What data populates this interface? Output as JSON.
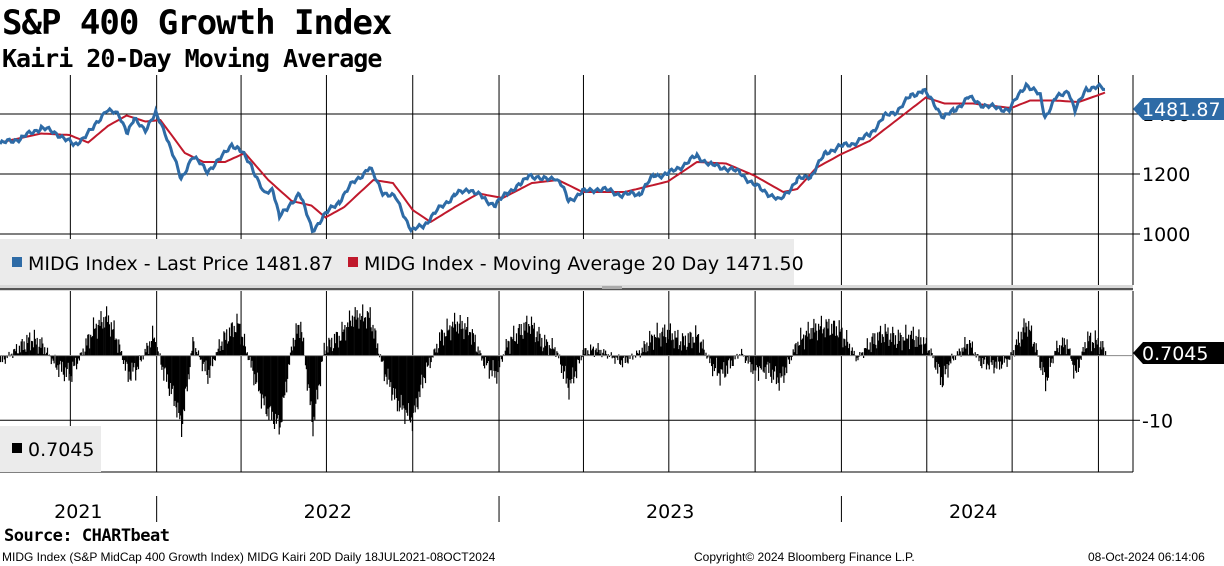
{
  "title": "S&P 400 Growth Index",
  "subtitle": "Kairi 20-Day Moving Average",
  "source": "Source: CHARTbeat",
  "footer": {
    "left": "MIDG Index (S&P MidCap 400 Growth Index) MIDG Kairi 20D  Daily 18JUL2021-08OCT2024",
    "center": "Copyright© 2024 Bloomberg Finance L.P.",
    "right": "08-Oct-2024 06:14:06"
  },
  "colors": {
    "price": "#2e6ba6",
    "moving_average": "#c0192c",
    "kairi": "#000000",
    "accent_label": "#2e6ba6"
  },
  "chart_data": [
    {
      "type": "line",
      "panel": "upper",
      "x_range": [
        "2021-07-18",
        "2024-10-08"
      ],
      "ylim": [
        830,
        1530
      ],
      "y_ticks": [
        1000,
        1200,
        1400
      ],
      "x_tick_labels": [
        "2021",
        "2022",
        "2023",
        "2024"
      ],
      "grid": true,
      "legend": "bottom-left",
      "last_value_label": "1481.87",
      "series": [
        {
          "name": "MIDG Index - Last Price",
          "legend_label": "MIDG Index - Last Price 1481.87",
          "color": "#2e6ba6",
          "points": [
            [
              "2021-07-18",
              1300
            ],
            [
              "2021-08-10",
              1320
            ],
            [
              "2021-08-31",
              1355
            ],
            [
              "2021-09-20",
              1330
            ],
            [
              "2021-10-05",
              1295
            ],
            [
              "2021-10-25",
              1350
            ],
            [
              "2021-11-08",
              1415
            ],
            [
              "2021-11-22",
              1395
            ],
            [
              "2021-12-01",
              1340
            ],
            [
              "2021-12-08",
              1380
            ],
            [
              "2021-12-20",
              1350
            ],
            [
              "2021-12-31",
              1400
            ],
            [
              "2022-01-10",
              1340
            ],
            [
              "2022-01-20",
              1250
            ],
            [
              "2022-01-27",
              1180
            ],
            [
              "2022-02-08",
              1260
            ],
            [
              "2022-02-24",
              1210
            ],
            [
              "2022-03-10",
              1250
            ],
            [
              "2022-03-22",
              1300
            ],
            [
              "2022-03-29",
              1285
            ],
            [
              "2022-04-12",
              1230
            ],
            [
              "2022-04-26",
              1130
            ],
            [
              "2022-05-05",
              1150
            ],
            [
              "2022-05-12",
              1060
            ],
            [
              "2022-05-20",
              1080
            ],
            [
              "2022-06-02",
              1140
            ],
            [
              "2022-06-16",
              1010
            ],
            [
              "2022-06-28",
              1060
            ],
            [
              "2022-07-15",
              1110
            ],
            [
              "2022-07-29",
              1170
            ],
            [
              "2022-08-16",
              1220
            ],
            [
              "2022-08-30",
              1140
            ],
            [
              "2022-09-13",
              1120
            ],
            [
              "2022-09-30",
              1010
            ],
            [
              "2022-10-13",
              1030
            ],
            [
              "2022-10-31",
              1090
            ],
            [
              "2022-11-15",
              1130
            ],
            [
              "2022-11-30",
              1150
            ],
            [
              "2022-12-15",
              1120
            ],
            [
              "2022-12-28",
              1095
            ],
            [
              "2023-01-10",
              1140
            ],
            [
              "2023-01-25",
              1165
            ],
            [
              "2023-02-02",
              1200
            ],
            [
              "2023-02-16",
              1180
            ],
            [
              "2023-03-02",
              1190
            ],
            [
              "2023-03-09",
              1160
            ],
            [
              "2023-03-16",
              1110
            ],
            [
              "2023-03-31",
              1140
            ],
            [
              "2023-04-14",
              1150
            ],
            [
              "2023-04-28",
              1145
            ],
            [
              "2023-05-12",
              1130
            ],
            [
              "2023-05-31",
              1135
            ],
            [
              "2023-06-15",
              1195
            ],
            [
              "2023-06-30",
              1200
            ],
            [
              "2023-07-14",
              1225
            ],
            [
              "2023-07-31",
              1260
            ],
            [
              "2023-08-15",
              1230
            ],
            [
              "2023-08-31",
              1220
            ],
            [
              "2023-09-15",
              1205
            ],
            [
              "2023-09-29",
              1165
            ],
            [
              "2023-10-13",
              1140
            ],
            [
              "2023-10-27",
              1110
            ],
            [
              "2023-11-15",
              1180
            ],
            [
              "2023-11-30",
              1195
            ],
            [
              "2023-12-15",
              1270
            ],
            [
              "2023-12-29",
              1290
            ],
            [
              "2024-01-12",
              1300
            ],
            [
              "2024-01-31",
              1330
            ],
            [
              "2024-02-15",
              1390
            ],
            [
              "2024-02-29",
              1410
            ],
            [
              "2024-03-15",
              1460
            ],
            [
              "2024-03-28",
              1480
            ],
            [
              "2024-04-05",
              1450
            ],
            [
              "2024-04-19",
              1390
            ],
            [
              "2024-04-30",
              1410
            ],
            [
              "2024-05-15",
              1455
            ],
            [
              "2024-05-31",
              1430
            ],
            [
              "2024-06-14",
              1420
            ],
            [
              "2024-06-28",
              1415
            ],
            [
              "2024-07-16",
              1500
            ],
            [
              "2024-07-31",
              1460
            ],
            [
              "2024-08-05",
              1390
            ],
            [
              "2024-08-16",
              1450
            ],
            [
              "2024-08-30",
              1480
            ],
            [
              "2024-09-06",
              1410
            ],
            [
              "2024-09-18",
              1485
            ],
            [
              "2024-09-30",
              1490
            ],
            [
              "2024-10-08",
              1481.87
            ]
          ]
        },
        {
          "name": "MIDG Index - Moving Average 20 Day",
          "legend_label": "MIDG Index - Moving Average 20 Day 1471.50",
          "color": "#c0192c",
          "points": [
            [
              "2021-07-18",
              1305
            ],
            [
              "2021-08-31",
              1335
            ],
            [
              "2021-09-30",
              1330
            ],
            [
              "2021-10-20",
              1305
            ],
            [
              "2021-11-10",
              1360
            ],
            [
              "2021-11-30",
              1395
            ],
            [
              "2021-12-20",
              1375
            ],
            [
              "2022-01-05",
              1380
            ],
            [
              "2022-01-31",
              1270
            ],
            [
              "2022-02-20",
              1240
            ],
            [
              "2022-03-15",
              1240
            ],
            [
              "2022-04-05",
              1270
            ],
            [
              "2022-04-30",
              1180
            ],
            [
              "2022-05-25",
              1110
            ],
            [
              "2022-06-15",
              1095
            ],
            [
              "2022-06-30",
              1055
            ],
            [
              "2022-07-20",
              1090
            ],
            [
              "2022-08-20",
              1180
            ],
            [
              "2022-09-10",
              1170
            ],
            [
              "2022-10-01",
              1080
            ],
            [
              "2022-10-20",
              1040
            ],
            [
              "2022-11-15",
              1090
            ],
            [
              "2022-12-10",
              1135
            ],
            [
              "2023-01-05",
              1120
            ],
            [
              "2023-02-05",
              1170
            ],
            [
              "2023-03-05",
              1180
            ],
            [
              "2023-03-31",
              1140
            ],
            [
              "2023-05-15",
              1140
            ],
            [
              "2023-06-30",
              1175
            ],
            [
              "2023-07-31",
              1240
            ],
            [
              "2023-08-31",
              1235
            ],
            [
              "2023-09-30",
              1195
            ],
            [
              "2023-10-31",
              1140
            ],
            [
              "2023-11-15",
              1150
            ],
            [
              "2023-12-05",
              1220
            ],
            [
              "2023-12-31",
              1265
            ],
            [
              "2024-01-31",
              1310
            ],
            [
              "2024-02-29",
              1380
            ],
            [
              "2024-03-31",
              1455
            ],
            [
              "2024-04-20",
              1435
            ],
            [
              "2024-05-20",
              1435
            ],
            [
              "2024-06-30",
              1420
            ],
            [
              "2024-07-20",
              1445
            ],
            [
              "2024-08-15",
              1445
            ],
            [
              "2024-09-10",
              1440
            ],
            [
              "2024-09-30",
              1462
            ],
            [
              "2024-10-08",
              1471.5
            ]
          ]
        }
      ]
    },
    {
      "type": "bar",
      "panel": "lower",
      "x_range": [
        "2021-07-18",
        "2024-10-08"
      ],
      "ylim": [
        -18,
        10
      ],
      "y_ticks": [
        -10
      ],
      "grid": true,
      "legend": "bottom-left",
      "last_value_label": "0.7045",
      "series": [
        {
          "name": "MIDG Kairi 20D",
          "legend_label": "0.7045",
          "color": "#000000",
          "points": [
            [
              "2021-07-18",
              -1
            ],
            [
              "2021-08-05",
              1
            ],
            [
              "2021-08-20",
              2.5
            ],
            [
              "2021-09-01",
              1.5
            ],
            [
              "2021-09-15",
              -1.5
            ],
            [
              "2021-09-30",
              -3
            ],
            [
              "2021-10-15",
              1
            ],
            [
              "2021-10-25",
              4
            ],
            [
              "2021-11-08",
              6
            ],
            [
              "2021-11-18",
              3
            ],
            [
              "2021-12-01",
              -3
            ],
            [
              "2021-12-10",
              -2
            ],
            [
              "2021-12-28",
              3
            ],
            [
              "2022-01-07",
              -2
            ],
            [
              "2022-01-20",
              -7
            ],
            [
              "2022-01-27",
              -11
            ],
            [
              "2022-02-08",
              2
            ],
            [
              "2022-02-24",
              -3
            ],
            [
              "2022-03-10",
              2
            ],
            [
              "2022-03-28",
              5
            ],
            [
              "2022-04-12",
              -2
            ],
            [
              "2022-04-26",
              -8
            ],
            [
              "2022-05-12",
              -11
            ],
            [
              "2022-05-25",
              2
            ],
            [
              "2022-06-03",
              5
            ],
            [
              "2022-06-16",
              -11
            ],
            [
              "2022-06-28",
              1
            ],
            [
              "2022-07-15",
              3
            ],
            [
              "2022-07-29",
              6
            ],
            [
              "2022-08-16",
              6
            ],
            [
              "2022-08-30",
              -2
            ],
            [
              "2022-09-13",
              -7
            ],
            [
              "2022-09-30",
              -10
            ],
            [
              "2022-10-13",
              -3
            ],
            [
              "2022-10-31",
              3
            ],
            [
              "2022-11-15",
              5
            ],
            [
              "2022-11-30",
              4
            ],
            [
              "2022-12-15",
              -1
            ],
            [
              "2022-12-28",
              -3
            ],
            [
              "2023-01-10",
              2
            ],
            [
              "2023-01-25",
              4
            ],
            [
              "2023-02-02",
              5
            ],
            [
              "2023-02-16",
              2
            ],
            [
              "2023-03-02",
              1
            ],
            [
              "2023-03-16",
              -5
            ],
            [
              "2023-03-31",
              0.5
            ],
            [
              "2023-04-14",
              1
            ],
            [
              "2023-05-12",
              -1
            ],
            [
              "2023-05-31",
              0.5
            ],
            [
              "2023-06-15",
              3
            ],
            [
              "2023-06-30",
              3.5
            ],
            [
              "2023-07-14",
              2
            ],
            [
              "2023-07-31",
              3
            ],
            [
              "2023-08-15",
              -1.5
            ],
            [
              "2023-08-25",
              -3
            ],
            [
              "2023-09-15",
              0.5
            ],
            [
              "2023-09-29",
              -2
            ],
            [
              "2023-10-13",
              -2
            ],
            [
              "2023-10-27",
              -4
            ],
            [
              "2023-11-15",
              2
            ],
            [
              "2023-11-30",
              4
            ],
            [
              "2023-12-15",
              4.5
            ],
            [
              "2023-12-29",
              4
            ],
            [
              "2024-01-17",
              -0.5
            ],
            [
              "2024-02-01",
              2
            ],
            [
              "2024-02-15",
              3.5
            ],
            [
              "2024-02-29",
              2.5
            ],
            [
              "2024-03-15",
              3
            ],
            [
              "2024-03-28",
              2
            ],
            [
              "2024-04-05",
              0.5
            ],
            [
              "2024-04-17",
              -4
            ],
            [
              "2024-04-25",
              -1
            ],
            [
              "2024-05-15",
              2
            ],
            [
              "2024-05-28",
              -1
            ],
            [
              "2024-06-14",
              -1.5
            ],
            [
              "2024-06-28",
              -0.5
            ],
            [
              "2024-07-16",
              5
            ],
            [
              "2024-07-24",
              2
            ],
            [
              "2024-08-05",
              -4
            ],
            [
              "2024-08-16",
              1
            ],
            [
              "2024-08-28",
              2
            ],
            [
              "2024-09-06",
              -3
            ],
            [
              "2024-09-18",
              2.5
            ],
            [
              "2024-09-30",
              2
            ],
            [
              "2024-10-08",
              0.7045
            ]
          ]
        }
      ]
    }
  ]
}
